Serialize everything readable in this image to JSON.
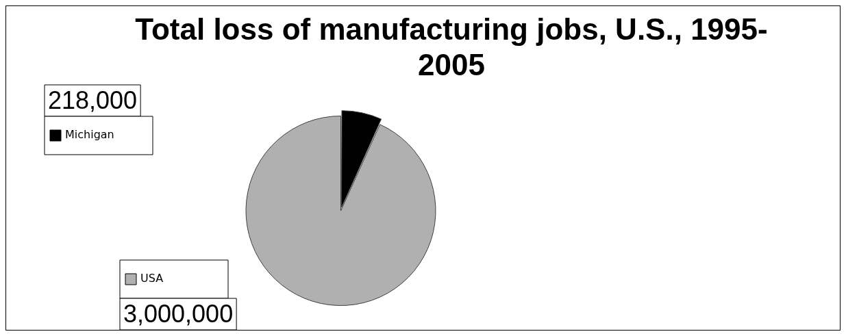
{
  "chart_data": {
    "type": "pie",
    "title": "Total loss of manufacturing jobs, U.S., 1995-2005",
    "categories": [
      "Michigan",
      "USA"
    ],
    "values": [
      218000,
      3000000
    ],
    "colors": [
      "#000000",
      "#b0b0b0"
    ],
    "value_labels": [
      "218,000",
      "3,000,000"
    ],
    "legend": "left"
  }
}
